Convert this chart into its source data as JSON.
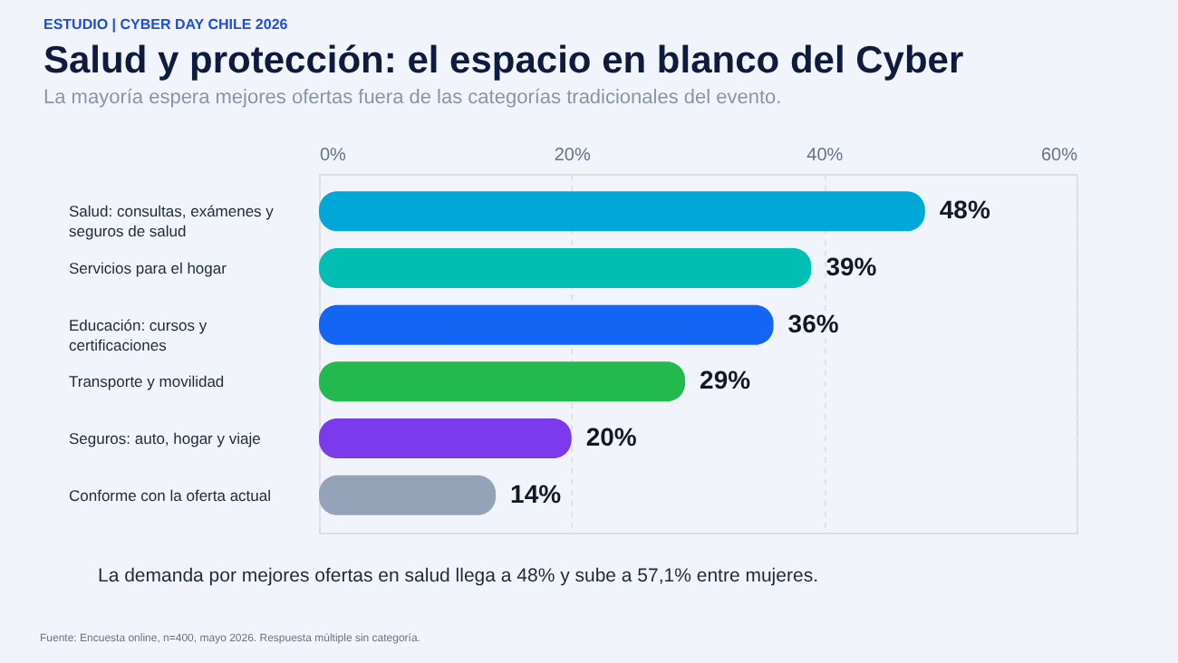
{
  "chart_data": {
    "type": "bar",
    "orientation": "horizontal",
    "title": "Salud y protección: el espacio en blanco del Cyber",
    "subtitle": "La mayoría espera mejores ofertas fuera de las categorías tradicionales del evento.",
    "categories": [
      "Salud: consultas, exámenes y seguros de salud",
      "Servicios para el hogar",
      "Educación: cursos y certificaciones",
      "Transporte y movilidad",
      "Seguros: auto, hogar y viaje",
      "Conforme con la oferta actual"
    ],
    "values": [
      48,
      39,
      36,
      29,
      20,
      14
    ],
    "colors": [
      "#00a8d8",
      "#00bfb2",
      "#1565f5",
      "#22b94f",
      "#7c3aed",
      "#94a3b8"
    ],
    "value_labels": [
      "48%",
      "39%",
      "36%",
      "29%",
      "20%",
      "14%"
    ],
    "xlim": [
      0,
      60
    ],
    "xticks": [
      {
        "value": 0,
        "label": "0%"
      },
      {
        "value": 20,
        "label": "20%"
      },
      {
        "value": 40,
        "label": "40%"
      },
      {
        "value": 60,
        "label": "60%"
      }
    ],
    "grid": "x",
    "annotations": [
      "ESTUDIO | CYBER DAY CHILE 2026",
      "La demanda por mejores ofertas en salud llega a 48% y sube a 57,1% entre mujeres.",
      "Fuente: Encuesta online, n=400, mayo 2026. Respuesta múltiple sin categoría."
    ]
  }
}
